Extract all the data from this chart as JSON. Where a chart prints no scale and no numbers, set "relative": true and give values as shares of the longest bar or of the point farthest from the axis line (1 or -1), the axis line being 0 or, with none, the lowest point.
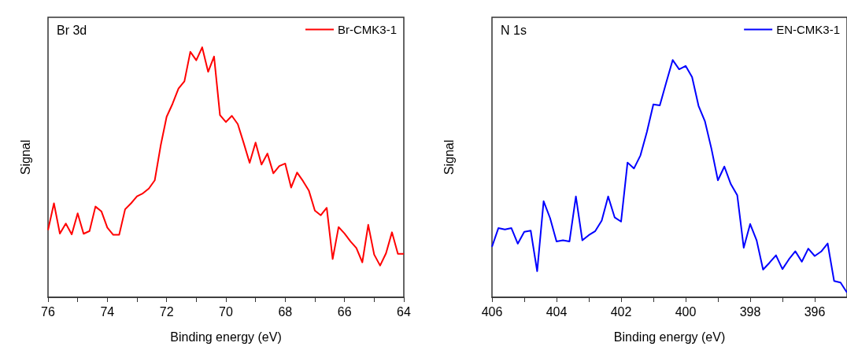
{
  "chart_data": [
    {
      "type": "line",
      "title": "Br 3d",
      "xlabel": "Binding energy (eV)",
      "ylabel": "Signal",
      "relative": true,
      "grid": false,
      "legend": "top right",
      "tick_labels": "x",
      "marker": "none",
      "xlim": [
        76,
        64
      ],
      "xticks": [
        76,
        {
          "value": 75,
          "label": null
        },
        74,
        {
          "value": 73,
          "label": null
        },
        72,
        {
          "value": 71,
          "label": null
        },
        70,
        {
          "value": 69,
          "label": null
        },
        68,
        {
          "value": 67,
          "label": null
        },
        66,
        {
          "value": 65,
          "label": null
        },
        64
      ],
      "series": [
        {
          "name": "Br-CMK3-1",
          "color": "#ff0000",
          "x": [
            76,
            75.8,
            75.6,
            75.4,
            75.2,
            75,
            74.8,
            74.6,
            74.4,
            74.2,
            74,
            73.8,
            73.6,
            73.4,
            73.2,
            73,
            72.8,
            72.6,
            72.4,
            72.2,
            72,
            71.8,
            71.6,
            71.4,
            71.2,
            71,
            70.8,
            70.6,
            70.4,
            70.2,
            70,
            69.8,
            69.6,
            69.4,
            69.2,
            69,
            68.8,
            68.6,
            68.4,
            68.2,
            68,
            67.8,
            67.6,
            67.4,
            67.2,
            67,
            66.8,
            66.6,
            66.4,
            66.2,
            66,
            65.8,
            65.6,
            65.4,
            65.2,
            65,
            64.8,
            64.6,
            64.4,
            64.2,
            64
          ],
          "values": [
            0.269,
            0.376,
            0.255,
            0.295,
            0.252,
            0.336,
            0.254,
            0.265,
            0.363,
            0.344,
            0.279,
            0.25,
            0.25,
            0.352,
            0.376,
            0.404,
            0.416,
            0.435,
            0.468,
            0.607,
            0.722,
            0.774,
            0.835,
            0.864,
            0.982,
            0.948,
            1,
            0.902,
            0.963,
            0.729,
            0.701,
            0.726,
            0.693,
            0.617,
            0.538,
            0.619,
            0.531,
            0.575,
            0.496,
            0.525,
            0.535,
            0.439,
            0.499,
            0.465,
            0.426,
            0.347,
            0.328,
            0.358,
            0.153,
            0.281,
            0.255,
            0.224,
            0.197,
            0.14,
            0.29,
            0.171,
            0.127,
            0.176,
            0.26,
            0.174,
            0.174
          ]
        }
      ]
    },
    {
      "type": "line",
      "title": "N 1s",
      "xlabel": "Binding energy (eV)",
      "ylabel": "Signal",
      "relative": true,
      "grid": false,
      "legend": "top right",
      "tick_labels": "x",
      "marker": "none",
      "xlim": [
        406,
        395
      ],
      "xticks": [
        406,
        {
          "value": 405,
          "label": null
        },
        404,
        {
          "value": 403,
          "label": null
        },
        402,
        {
          "value": 401,
          "label": null
        },
        400,
        {
          "value": 399,
          "label": null
        },
        398,
        {
          "value": 397,
          "label": null
        },
        396
      ],
      "series": [
        {
          "name": "EN-CMK3-1",
          "color": "#0000ff",
          "x": [
            406,
            405.8,
            405.6,
            405.4,
            405.2,
            405,
            404.8,
            404.6,
            404.4,
            404.2,
            404,
            403.8,
            403.6,
            403.4,
            403.2,
            403,
            402.8,
            402.6,
            402.4,
            402.2,
            402,
            401.8,
            401.6,
            401.4,
            401.2,
            401,
            400.8,
            400.6,
            400.4,
            400.2,
            400,
            399.8,
            399.6,
            399.4,
            399.2,
            399,
            398.8,
            398.6,
            398.4,
            398.2,
            398,
            397.8,
            397.6,
            397.4,
            397.2,
            397,
            396.8,
            396.6,
            396.4,
            396.2,
            396,
            395.8,
            395.6,
            395.4,
            395.2,
            395
          ],
          "values": [
            0.213,
            0.292,
            0.286,
            0.292,
            0.226,
            0.276,
            0.281,
            0.11,
            0.405,
            0.334,
            0.235,
            0.24,
            0.235,
            0.425,
            0.24,
            0.262,
            0.279,
            0.323,
            0.425,
            0.337,
            0.319,
            0.568,
            0.543,
            0.598,
            0.697,
            0.813,
            0.809,
            0.906,
            1,
            0.961,
            0.975,
            0.928,
            0.807,
            0.741,
            0.626,
            0.493,
            0.551,
            0.477,
            0.43,
            0.209,
            0.309,
            0.24,
            0.117,
            0.146,
            0.177,
            0.119,
            0.16,
            0.194,
            0.15,
            0.205,
            0.174,
            0.193,
            0.227,
            0.069,
            0.062,
            0.02
          ]
        }
      ]
    }
  ]
}
